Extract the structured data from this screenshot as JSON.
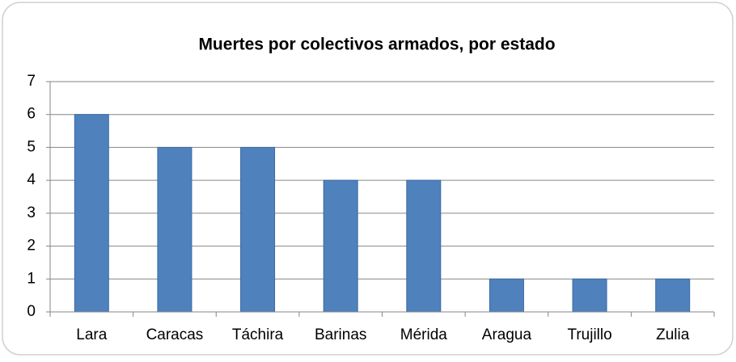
{
  "chart_data": {
    "type": "bar",
    "title": "Muertes por colectivos armados, por estado",
    "categories": [
      "Lara",
      "Caracas",
      "Táchira",
      "Barinas",
      "Mérida",
      "Aragua",
      "Trujillo",
      "Zulia"
    ],
    "values": [
      6,
      5,
      5,
      4,
      4,
      1,
      1,
      1
    ],
    "color": "#4f81bd",
    "ylim": [
      0,
      7
    ],
    "yticks": [
      0,
      1,
      2,
      3,
      4,
      5,
      6,
      7
    ],
    "grid": true
  }
}
